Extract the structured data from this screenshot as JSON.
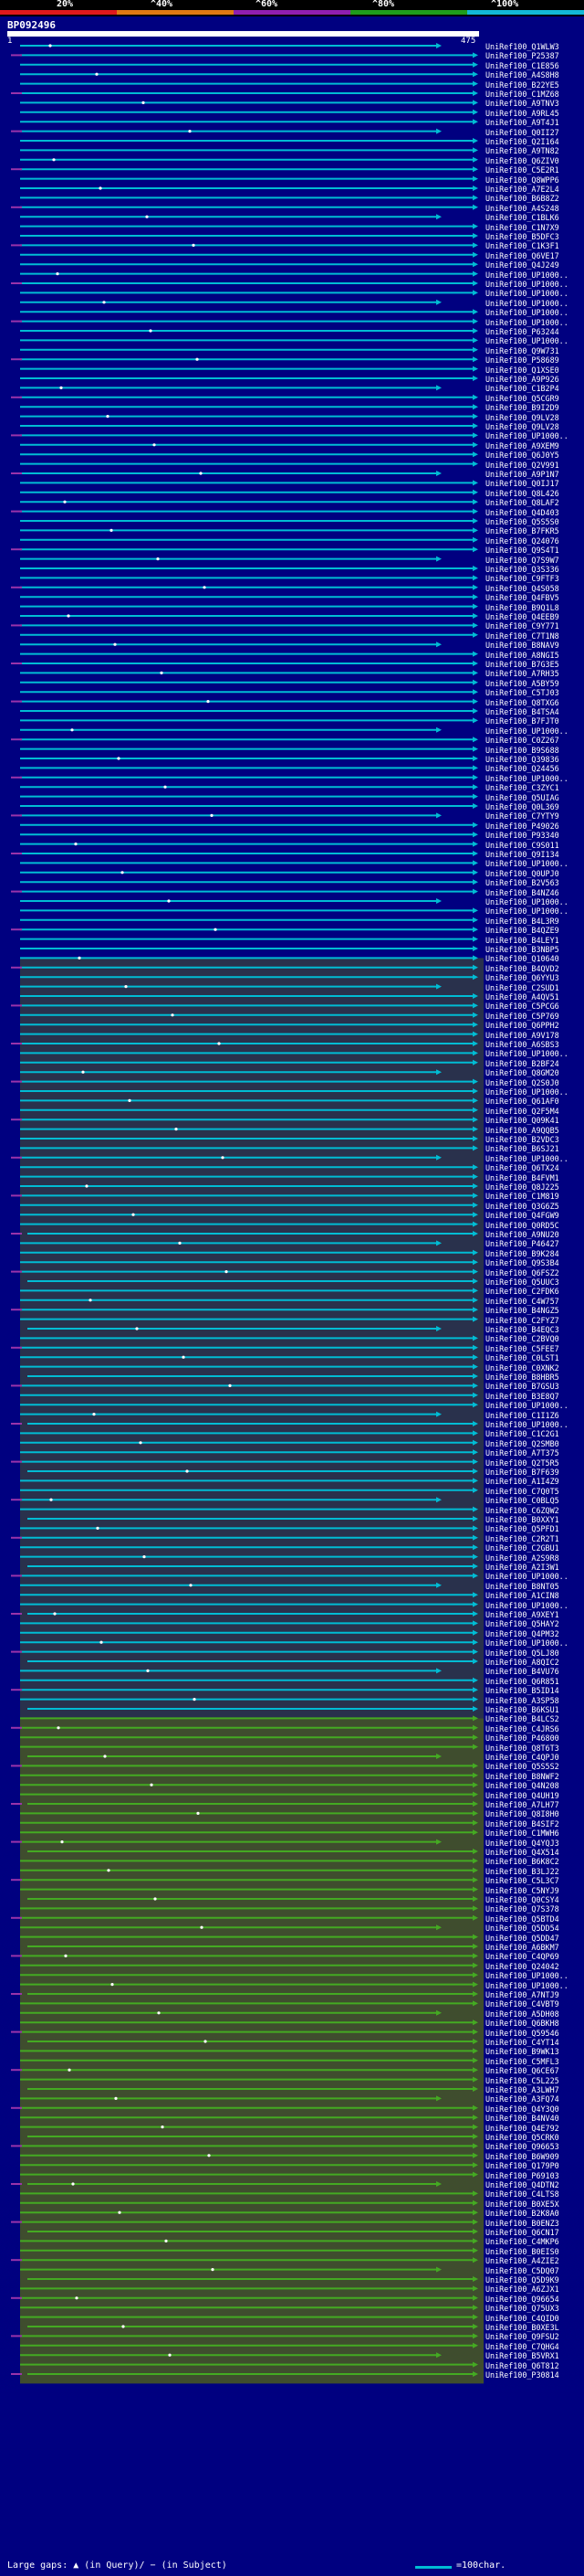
{
  "family_id": "BP092496",
  "scale": {
    "labels": [
      "20%",
      "^40%",
      "^60%",
      "^80%",
      "^100%"
    ],
    "colors": [
      "#e0191c",
      "#e07a13",
      "#8f1fb0",
      "#1f9c1c",
      "#13b8d6"
    ]
  },
  "query": {
    "start_label": "1",
    "end_label": "475"
  },
  "colors": {
    "background": "#000080",
    "cyan": "#00bcd4",
    "green": "#44aa22",
    "gap": "#9933aa",
    "olive_band": "#4a5a20",
    "teal_band": "#1a4a60"
  },
  "sequences": [
    "UniRef100_Q1WLW3",
    "UniRef100_P25387",
    "UniRef100_C1E856",
    "UniRef100_A4S8H8",
    "UniRef100_B22YE5",
    "UniRef100_C1MZ68",
    "UniRef100_A9TNV3",
    "UniRef100_A9RL45",
    "UniRef100_A9T4J1",
    "UniRef100_Q0II27",
    "UniRef100_Q2I164",
    "UniRef100_A9TN82",
    "UniRef100_Q6ZIV0",
    "UniRef100_C5E2R1",
    "UniRef100_Q8WPP6",
    "UniRef100_A7E2L4",
    "UniRef100_B6B8Z2",
    "UniRef100_A4S248",
    "UniRef100_C1BLK6",
    "UniRef100_C1N7X9",
    "UniRef100_B5DFC3",
    "UniRef100_C1K3F1",
    "UniRef100_Q6VE17",
    "UniRef100_Q4J249",
    "UniRef100_UP1000..",
    "UniRef100_UP1000..",
    "UniRef100_UP1000..",
    "UniRef100_UP1000..",
    "UniRef100_UP1000..",
    "UniRef100_UP1000..",
    "UniRef100_P63244",
    "UniRef100_UP1000..",
    "UniRef100_Q9W731",
    "UniRef100_P58689",
    "UniRef100_Q1XSE0",
    "UniRef100_A9P926",
    "UniRef100_C1B2P4",
    "UniRef100_Q5CGR9",
    "UniRef100_B9I2D9",
    "UniRef100_Q9LV28",
    "UniRef100_Q9LV28",
    "UniRef100_UP1000..",
    "UniRef100_A9XEM9",
    "UniRef100_Q6J0Y5",
    "UniRef100_Q2V991",
    "UniRef100_A9P1N7",
    "UniRef100_Q0IJ17",
    "UniRef100_Q8L426",
    "UniRef100_Q8LAF2",
    "UniRef100_Q4D403",
    "UniRef100_Q5S5S0",
    "UniRef100_B7FKR5",
    "UniRef100_Q24076",
    "UniRef100_Q9S4T1",
    "UniRef100_Q7S9W7",
    "UniRef100_Q3S336",
    "UniRef100_C9FTF3",
    "UniRef100_Q4S058",
    "UniRef100_Q4FBV5",
    "UniRef100_B9Q1L8",
    "UniRef100_Q4EEB9",
    "UniRef100_C9Y771",
    "UniRef100_C7T1N8",
    "UniRef100_B8NAV9",
    "UniRef100_A8NGI5",
    "UniRef100_B7G3E5",
    "UniRef100_A7RH35",
    "UniRef100_A5BY59",
    "UniRef100_C5TJ03",
    "UniRef100_Q8TXG6",
    "UniRef100_B4TSA4",
    "UniRef100_B7FJT0",
    "UniRef100_UP1000..",
    "UniRef100_C0Z267",
    "UniRef100_B9S688",
    "UniRef100_Q39836",
    "UniRef100_Q24456",
    "UniRef100_UP1000..",
    "UniRef100_C3ZYC1",
    "UniRef100_Q5UIAG",
    "UniRef100_Q0L369",
    "UniRef100_C7YTY9",
    "UniRef100_P49026",
    "UniRef100_P93340",
    "UniRef100_C9S011",
    "UniRef100_Q9I134",
    "UniRef100_UP1000..",
    "UniRef100_Q0UPJ0",
    "UniRef100_B2V563",
    "UniRef100_B4NZ46",
    "UniRef100_UP1000..",
    "UniRef100_UP1000..",
    "UniRef100_B4L3R9",
    "UniRef100_B4QZE9",
    "UniRef100_B4LEY1",
    "UniRef100_B3NBP5",
    "UniRef100_Q10640",
    "UniRef100_B4QVD2",
    "UniRef100_Q6YYU3",
    "UniRef100_C2SUD1",
    "UniRef100_A4QV51",
    "UniRef100_C5PCG6",
    "UniRef100_C5P769",
    "UniRef100_Q6PPH2",
    "UniRef100_A9V178",
    "UniRef100_A6SBS3",
    "UniRef100_UP1000..",
    "UniRef100_B2BF24",
    "UniRef100_Q8GM20",
    "UniRef100_Q2S0J0",
    "UniRef100_UP1000..",
    "UniRef100_Q61AF0",
    "UniRef100_Q2F5M4",
    "UniRef100_Q09K41",
    "UniRef100_A9QQB5",
    "UniRef100_B2VDC3",
    "UniRef100_B6SJ21",
    "UniRef100_UP1000..",
    "UniRef100_Q6TX24",
    "UniRef100_B4FVM1",
    "UniRef100_Q8J225",
    "UniRef100_C1M819",
    "UniRef100_Q3G6Z5",
    "UniRef100_Q4FGW9",
    "UniRef100_Q0RD5C",
    "UniRef100_A9NU20",
    "UniRef100_P46427",
    "UniRef100_B9K284",
    "UniRef100_Q9S3B4",
    "UniRef100_Q6FSZ2",
    "UniRef100_Q5UUC3",
    "UniRef100_C2FDK6",
    "UniRef100_C4W757",
    "UniRef100_B4NGZ5",
    "UniRef100_C2FYZ7",
    "UniRef100_B4EQC3",
    "UniRef100_C2BVQ0",
    "UniRef100_C5FEE7",
    "UniRef100_C0LST1",
    "UniRef100_C0XNK2",
    "UniRef100_B8HBR5",
    "UniRef100_B7GSU3",
    "UniRef100_B3E8Q7",
    "UniRef100_UP1000..",
    "UniRef100_C1I1Z6",
    "UniRef100_UP1000..",
    "UniRef100_C1C2G1",
    "UniRef100_Q2SMB0",
    "UniRef100_A7T375",
    "UniRef100_Q2T5R5",
    "UniRef100_B7F639",
    "UniRef100_A1I4Z9",
    "UniRef100_C7Q0T5",
    "UniRef100_C0BLQ5",
    "UniRef100_C6ZQW2",
    "UniRef100_B0XXY1",
    "UniRef100_Q5PFD1",
    "UniRef100_C2R2T1",
    "UniRef100_C2GBU1",
    "UniRef100_A2S9R8",
    "UniRef100_A2I3W1",
    "UniRef100_UP1000..",
    "UniRef100_B8NT05",
    "UniRef100_A1CIN8",
    "UniRef100_UP1000..",
    "UniRef100_A9XEY1",
    "UniRef100_Q5HAY2",
    "UniRef100_Q4PM32",
    "UniRef100_UP1000..",
    "UniRef100_Q5LJ80",
    "UniRef100_A8QIC2",
    "UniRef100_B4VU76",
    "UniRef100_Q6R851",
    "UniRef100_B5ID14",
    "UniRef100_A3SP58",
    "UniRef100_B6KSU1",
    "UniRef100_B4LCS2",
    "UniRef100_C4JRS6",
    "UniRef100_P46800",
    "UniRef100_Q8T6T3",
    "UniRef100_C4QPJ0",
    "UniRef100_Q5S5S2",
    "UniRef100_B8NWF2",
    "UniRef100_Q4N208",
    "UniRef100_Q4UH19",
    "UniRef100_A7LH77",
    "UniRef100_Q8I8H0",
    "UniRef100_B4SIF2",
    "UniRef100_C1MWH6",
    "UniRef100_Q4YQJ3",
    "UniRef100_Q4X514",
    "UniRef100_B6K8C2",
    "UniRef100_B3LJ22",
    "UniRef100_C5L3C7",
    "UniRef100_C5NYJ9",
    "UniRef100_Q0CSY4",
    "UniRef100_Q7S378",
    "UniRef100_Q5BTD4",
    "UniRef100_Q5DD54",
    "UniRef100_Q5DD47",
    "UniRef100_A6BKM7",
    "UniRef100_C4QP69",
    "UniRef100_Q24042",
    "UniRef100_UP1000..",
    "UniRef100_UP1000..",
    "UniRef100_A7NTJ9",
    "UniRef100_C4VBT9",
    "UniRef100_A5DH08",
    "UniRef100_Q6BKH8",
    "UniRef100_Q59546",
    "UniRef100_C4YT14",
    "UniRef100_B9WK13",
    "UniRef100_C5MFL3",
    "UniRef100_Q6CE67",
    "UniRef100_C5L225",
    "UniRef100_A3LWH7",
    "UniRef100_A3FQ74",
    "UniRef100_Q4Y3Q0",
    "UniRef100_B4NV40",
    "UniRef100_Q4E792",
    "UniRef100_Q5CRK0",
    "UniRef100_Q96653",
    "UniRef100_B6W909",
    "UniRef100_Q179P0",
    "UniRef100_P69103",
    "UniRef100_Q4DTN2",
    "UniRef100_C4LTS8",
    "UniRef100_B0XE5X",
    "UniRef100_B2K8A0",
    "UniRef100_B0ENZ3",
    "UniRef100_Q6CN17",
    "UniRef100_C4MKP6",
    "UniRef100_B0EIS0",
    "UniRef100_A4ZIE2",
    "UniRef100_C5DQ07",
    "UniRef100_Q5D9K9",
    "UniRef100_A6ZJX1",
    "UniRef100_Q96654",
    "UniRef100_Q75UX3",
    "UniRef100_C4QID0",
    "UniRef100_B0XE3L",
    "UniRef100_Q9FSU2",
    "UniRef100_C7QHG4",
    "UniRef100_B5VRX1",
    "UniRef100_Q6T812",
    "UniRef100_P30814"
  ],
  "legend": {
    "gap_text": "Large gaps: ▲ (in Query)/ − (in Subject)",
    "line_text": "=100char."
  }
}
